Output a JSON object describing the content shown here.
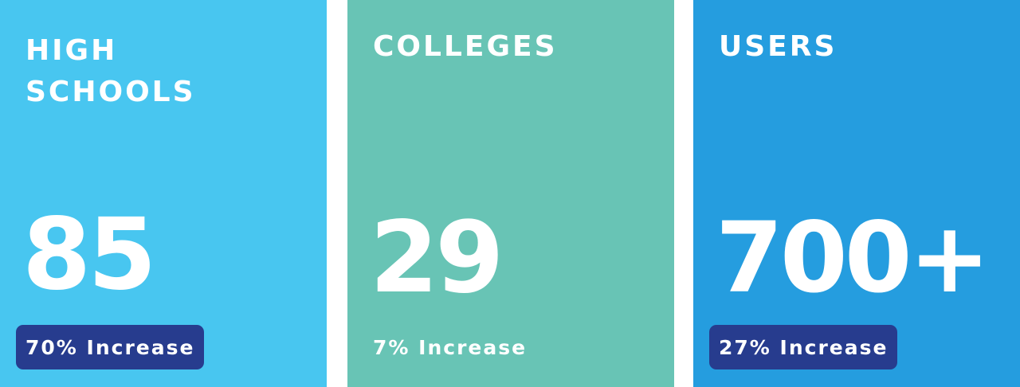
{
  "colors": {
    "high_schools_bg": "#48c6f0",
    "colleges_bg": "#68c4b5",
    "users_bg": "#259ddf",
    "badge_bg": "#273c8e",
    "text": "#ffffff"
  },
  "cards": [
    {
      "title_line1": "HIGH",
      "title_line2": "SCHOOLS",
      "value": "85",
      "change": "70% Increase",
      "change_badge": true
    },
    {
      "title_line1": "COLLEGES",
      "title_line2": "",
      "value": "29",
      "change": "7% Increase",
      "change_badge": false
    },
    {
      "title_line1": "USERS",
      "title_line2": "",
      "value": "700+",
      "change": "27% Increase",
      "change_badge": true
    }
  ]
}
